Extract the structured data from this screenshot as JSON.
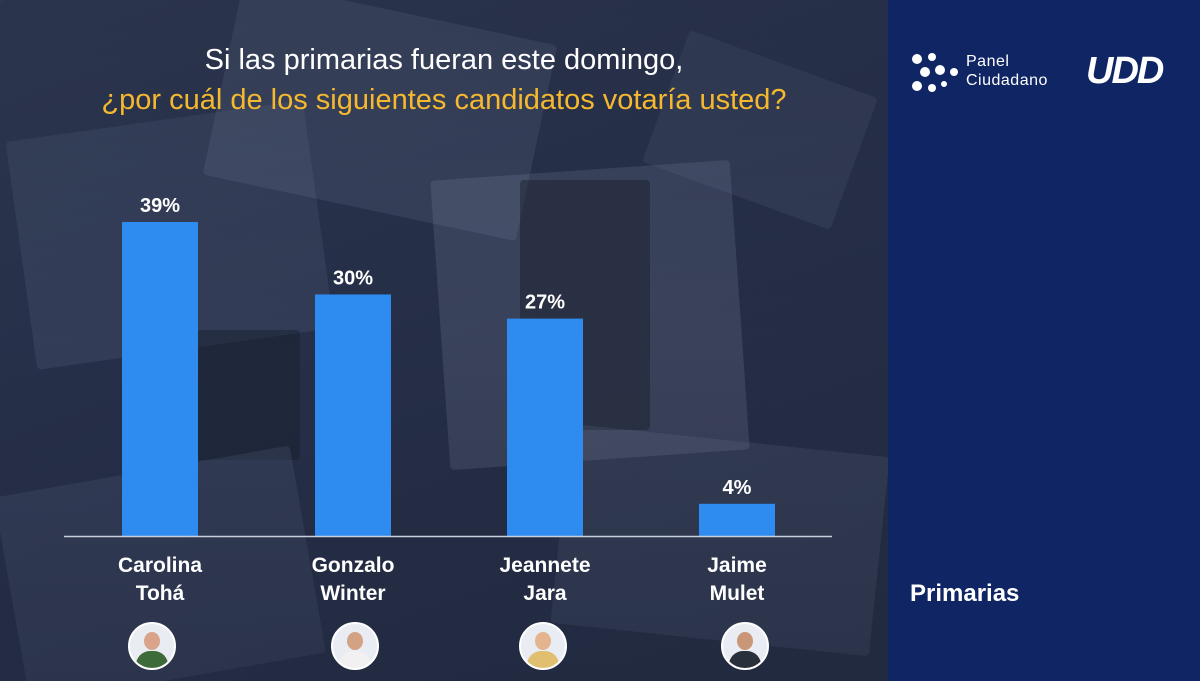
{
  "title": {
    "line1": "Si las primarias fueran este domingo,",
    "line2": "¿por cuál de los siguientes candidatos votaría usted?"
  },
  "brand": {
    "panel_line1": "Panel",
    "panel_line2": "Ciudadano",
    "university": "UDD"
  },
  "section_label": "Primarias",
  "colors": {
    "bar": "#2e8cf0",
    "title_highlight": "#f5b82e",
    "right_panel": "#0f2564"
  },
  "candidates": [
    {
      "name": "Carolina\nTohá",
      "avatar_icon": "person-photo-icon"
    },
    {
      "name": "Gonzalo\nWinter",
      "avatar_icon": "person-photo-icon"
    },
    {
      "name": "Jeannete\nJara",
      "avatar_icon": "person-photo-icon"
    },
    {
      "name": "Jaime\nMulet",
      "avatar_icon": "person-photo-icon"
    }
  ],
  "chart_data": {
    "type": "bar",
    "title": "Si las primarias fueran este domingo, ¿por cuál de los siguientes candidatos votaría usted?",
    "categories": [
      "Carolina Tohá",
      "Gonzalo Winter",
      "Jeannete Jara",
      "Jaime Mulet"
    ],
    "values": [
      39,
      30,
      27,
      4
    ],
    "data_labels": [
      "39%",
      "30%",
      "27%",
      "4%"
    ],
    "unit": "%",
    "ylim": [
      0,
      39
    ],
    "grid": false,
    "legend": "none"
  }
}
